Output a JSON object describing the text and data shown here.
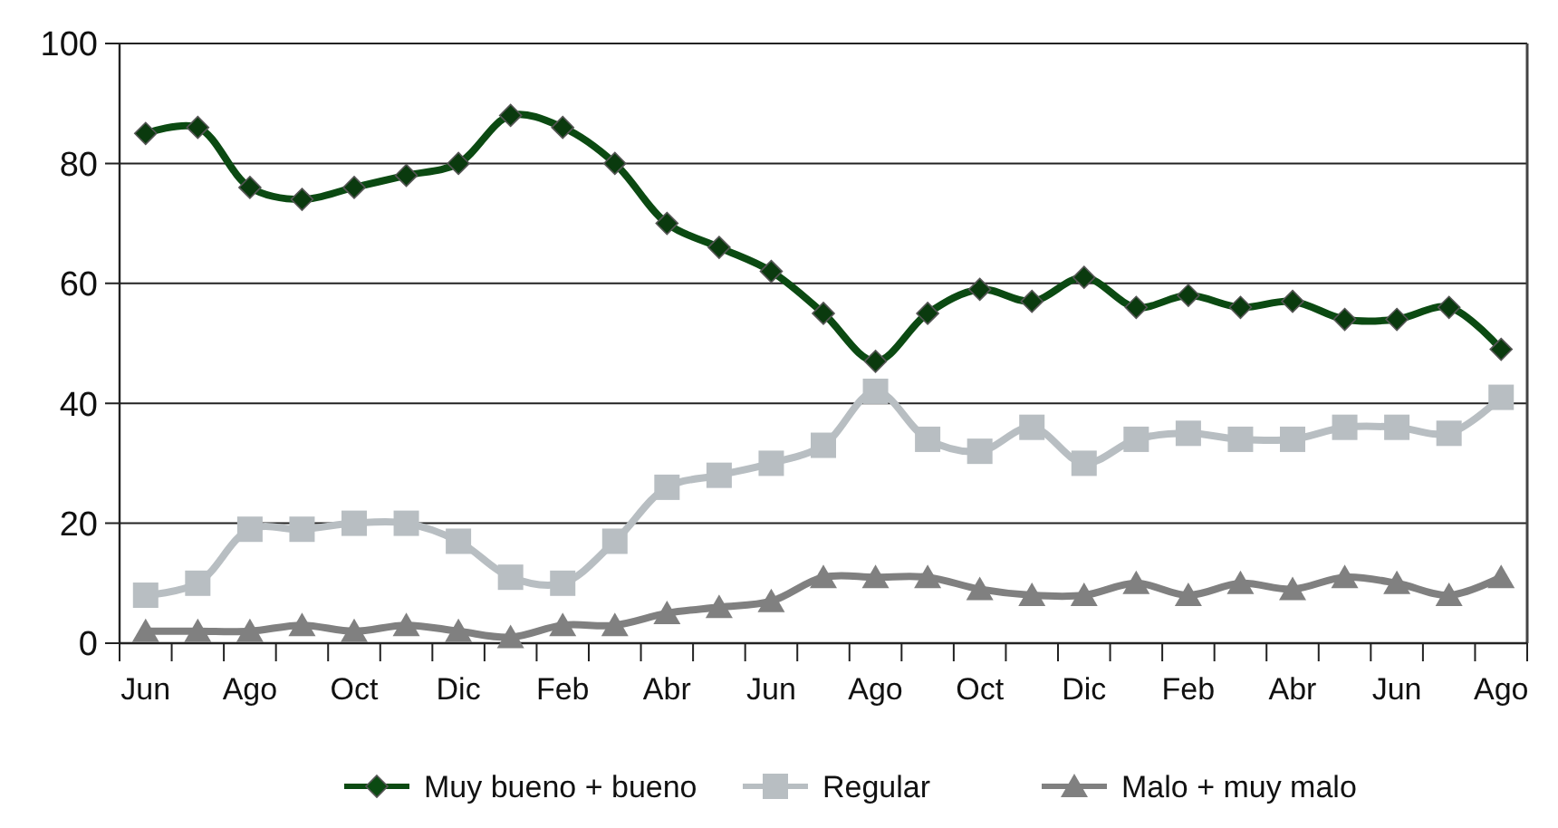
{
  "chart_data": {
    "type": "line",
    "categories": [
      "Jun",
      null,
      "Ago",
      null,
      "Oct",
      null,
      "Dic",
      null,
      "Feb",
      null,
      "Abr",
      null,
      "Jun",
      null,
      "Ago",
      null,
      "Oct",
      null,
      "Dic",
      null,
      "Feb",
      null,
      "Abr",
      null,
      "Jun",
      null,
      "Ago"
    ],
    "series": [
      {
        "name": "Muy bueno  + bueno",
        "color": "#0b4a12",
        "marker": "diamond",
        "values": [
          85,
          86,
          76,
          74,
          76,
          78,
          80,
          88,
          86,
          80,
          70,
          66,
          62,
          55,
          47,
          55,
          59,
          57,
          61,
          56,
          58,
          56,
          57,
          54,
          54,
          56,
          49
        ]
      },
      {
        "name": "Regular",
        "color": "#b8bec2",
        "marker": "square",
        "values": [
          8,
          10,
          19,
          19,
          20,
          20,
          17,
          11,
          10,
          17,
          26,
          28,
          30,
          33,
          42,
          34,
          32,
          36,
          30,
          34,
          35,
          34,
          34,
          36,
          36,
          35,
          41
        ]
      },
      {
        "name": "Malo + muy malo",
        "color": "#808080",
        "marker": "triangle",
        "values": [
          2,
          2,
          2,
          3,
          2,
          3,
          2,
          1,
          3,
          3,
          5,
          6,
          7,
          11,
          11,
          11,
          9,
          8,
          8,
          10,
          8,
          10,
          9,
          11,
          10,
          8,
          11
        ]
      }
    ],
    "ylim": [
      0,
      100
    ],
    "yticks": [
      0,
      20,
      40,
      60,
      80,
      100
    ],
    "grid": "y",
    "legend": "bottom"
  }
}
